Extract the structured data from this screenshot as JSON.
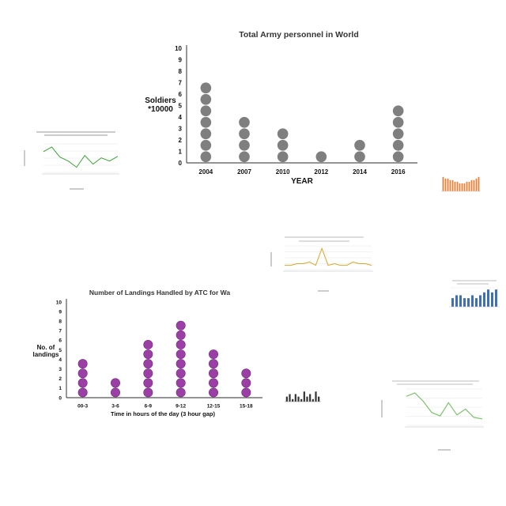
{
  "chart_data": [
    {
      "type": "scatter",
      "style": "dot-plot",
      "title": "Total Army personnel in World",
      "xlabel": "YEAR",
      "ylabel": "Soldiers\n*10000",
      "categories": [
        "2004",
        "2007",
        "2010",
        "2012",
        "2014",
        "2016"
      ],
      "values": [
        7,
        4,
        3,
        1,
        2,
        5
      ],
      "ylim": [
        0,
        10
      ],
      "yticks": [
        "0",
        "1",
        "2",
        "3",
        "4",
        "5",
        "6",
        "7",
        "8",
        "9",
        "10"
      ],
      "dot_color": "#7f7f7f",
      "grid": false
    },
    {
      "type": "scatter",
      "style": "dot-plot",
      "title": "Number of Landings Handled by ATC for Wa",
      "xlabel": "Time in hours of the day (3 hour gap)",
      "ylabel": "No. of\nlandings",
      "categories": [
        "00-3",
        "3-6",
        "6-9",
        "9-12",
        "12-15",
        "15-18"
      ],
      "values": [
        4,
        2,
        6,
        8,
        5,
        3
      ],
      "ylim": [
        0,
        10
      ],
      "yticks": [
        "0",
        "1",
        "2",
        "3",
        "4",
        "5",
        "6",
        "7",
        "8",
        "9",
        "10"
      ],
      "dot_color": "#9b3fa6",
      "dot_stroke": "#6f2a78",
      "grid": false
    },
    {
      "type": "line",
      "title": "",
      "xlabel": "",
      "ylabel": "",
      "values": [
        4600,
        5200,
        3900,
        3400,
        2600,
        4100,
        3000,
        3800,
        3400,
        4000
      ],
      "line_color": "#3aa535",
      "grid": true
    },
    {
      "type": "line",
      "title": "Air quality: Measures on the national environmental health tracking network in 2005",
      "xlabel": "Location",
      "ylabel": "Value (in thousands)",
      "values": [
        11,
        11,
        12,
        12,
        13,
        11,
        21,
        11,
        12,
        11,
        11,
        13,
        12,
        12,
        11
      ],
      "line_color": "#e0a526",
      "grid": true
    },
    {
      "type": "bar",
      "title": "",
      "values": [
        9,
        8,
        8,
        7,
        7,
        6,
        6,
        5,
        5,
        5,
        6,
        6,
        7,
        7,
        8,
        9
      ],
      "bar_color": "#e8823a",
      "grid": false
    },
    {
      "type": "bar",
      "title": "",
      "values": [
        3,
        4,
        4,
        3,
        3,
        4,
        3,
        4,
        5,
        6,
        5,
        6
      ],
      "bar_color": "#3f6fb5",
      "grid": true
    },
    {
      "type": "bar",
      "title": "",
      "values": [
        2,
        3,
        1,
        3,
        2,
        1,
        4,
        2,
        3,
        1,
        4,
        2
      ],
      "bar_color": "#333333",
      "grid": false
    },
    {
      "type": "line",
      "title": "",
      "xlabel": "",
      "ylabel": "",
      "values": [
        88,
        95,
        78,
        55,
        48,
        75,
        50,
        62,
        45,
        42
      ],
      "line_color": "#7cc36b",
      "grid": true
    }
  ]
}
